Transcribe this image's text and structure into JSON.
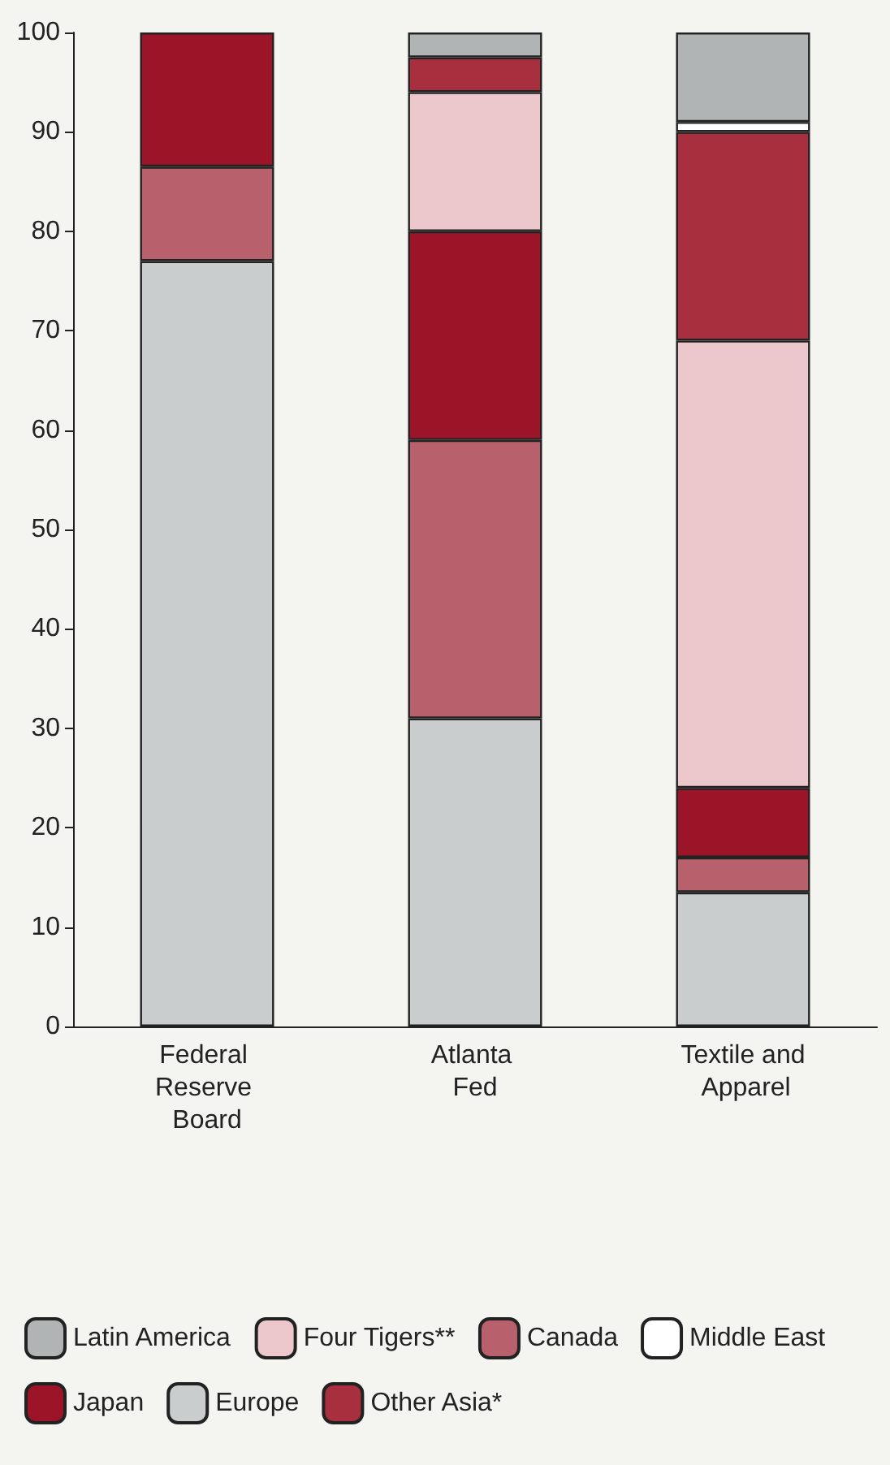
{
  "chart_data": {
    "type": "bar",
    "stacked": true,
    "categories": [
      "Federal Reserve Board",
      "Atlanta Fed",
      "Textile and Apparel"
    ],
    "series": [
      {
        "name": "Europe",
        "color": "#c9cdcd",
        "values": [
          77,
          31,
          13.5
        ]
      },
      {
        "name": "Canada",
        "color": "#b8606c",
        "values": [
          9.5,
          28,
          3.5
        ]
      },
      {
        "name": "Japan",
        "color": "#9c1428",
        "values": [
          13.5,
          21,
          7
        ]
      },
      {
        "name": "Four Tigers**",
        "color": "#ecc8cc",
        "values": [
          0,
          14,
          45
        ]
      },
      {
        "name": "Other Asia*",
        "color": "#a8303e",
        "values": [
          0,
          3.5,
          21
        ]
      },
      {
        "name": "Middle East",
        "color": "#ffffff",
        "values": [
          0,
          0,
          1
        ]
      },
      {
        "name": "Latin America",
        "color": "#b0b4b4",
        "values": [
          0,
          2.5,
          9
        ]
      }
    ],
    "ylim": [
      0,
      100
    ],
    "yticks": [
      0,
      10,
      20,
      30,
      40,
      50,
      60,
      70,
      80,
      90,
      100
    ],
    "grid": false,
    "legend": "bottom"
  }
}
